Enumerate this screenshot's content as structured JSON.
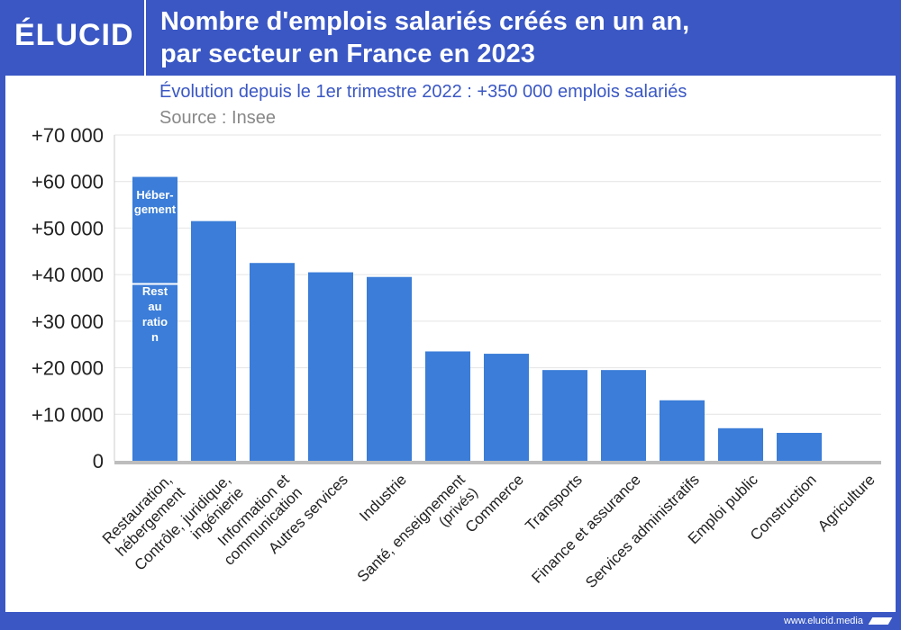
{
  "brand": {
    "logo": "ÉLUCID",
    "url": "www.elucid.media"
  },
  "header": {
    "title_line1": "Nombre d'emplois salariés créés en un an,",
    "title_line2": "par secteur en France en 2023"
  },
  "subtitle": "Évolution depuis le 1er trimestre 2022 : +350 000 emplois salariés",
  "source": "Source : Insee",
  "colors": {
    "bar": "#3b7dd8",
    "header": "#3a57c4",
    "subtitle": "#3a57c4",
    "source": "#888888"
  },
  "chart_data": {
    "type": "bar",
    "y_tick_labels": [
      "0",
      "+10 000",
      "+20 000",
      "+30 000",
      "+40 000",
      "+50 000",
      "+60 000",
      "+70 000"
    ],
    "ylim": [
      0,
      70000
    ],
    "grid": true,
    "categories": [
      [
        "Restauration,",
        "hébergement"
      ],
      [
        "Contrôle, juridique,",
        "ingénierie"
      ],
      [
        "Information et",
        "communication"
      ],
      [
        "Autres services"
      ],
      [
        "Industrie"
      ],
      [
        "Santé, enseignement",
        "(privés)"
      ],
      [
        "Commerce"
      ],
      [
        "Transports"
      ],
      [
        "Finance et assurance"
      ],
      [
        "Services administratifs"
      ],
      [
        "Emploi public"
      ],
      [
        "Construction"
      ],
      [
        "Agriculture"
      ]
    ],
    "values": [
      61000,
      51500,
      42500,
      40500,
      39500,
      23500,
      23000,
      19500,
      19500,
      13000,
      7000,
      6000,
      0
    ],
    "stack_first_bar": {
      "segments": [
        {
          "label": "Rest au ratio n",
          "value": 38000
        },
        {
          "label": "Héber-gement",
          "value": 23000
        }
      ]
    },
    "segment_text": {
      "top": [
        "Héber-",
        "gement"
      ],
      "bottom": [
        "Rest",
        "au",
        "ratio",
        "n"
      ]
    }
  }
}
